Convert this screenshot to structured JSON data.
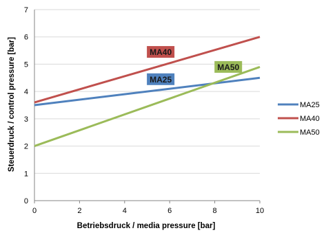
{
  "chart_data": {
    "type": "line",
    "xlabel": "Betriebsdruck / media pressure [bar]",
    "ylabel": "Steuerdruck  / control pressure [bar]",
    "xlim": [
      0,
      10
    ],
    "ylim": [
      0,
      7
    ],
    "x_ticks": [
      0,
      2,
      4,
      6,
      8,
      10
    ],
    "y_ticks": [
      0,
      1,
      2,
      3,
      4,
      5,
      6,
      7
    ],
    "grid": "horizontal",
    "legend_position": "right",
    "series": [
      {
        "name": "MA25",
        "color": "#4f81bd",
        "x": [
          0,
          10
        ],
        "y": [
          3.5,
          4.5
        ]
      },
      {
        "name": "MA40",
        "color": "#c0504d",
        "x": [
          0,
          10
        ],
        "y": [
          3.6,
          6.0
        ]
      },
      {
        "name": "MA50",
        "color": "#9bbb59",
        "x": [
          0,
          10
        ],
        "y": [
          2.0,
          4.9
        ]
      }
    ],
    "annotations": [
      {
        "text": "MA40",
        "series": "MA40",
        "x": 5.6,
        "y": 5.45
      },
      {
        "text": "MA25",
        "series": "MA25",
        "x": 5.6,
        "y": 4.45
      },
      {
        "text": "MA50",
        "series": "MA50",
        "x": 8.6,
        "y": 4.9
      }
    ]
  }
}
